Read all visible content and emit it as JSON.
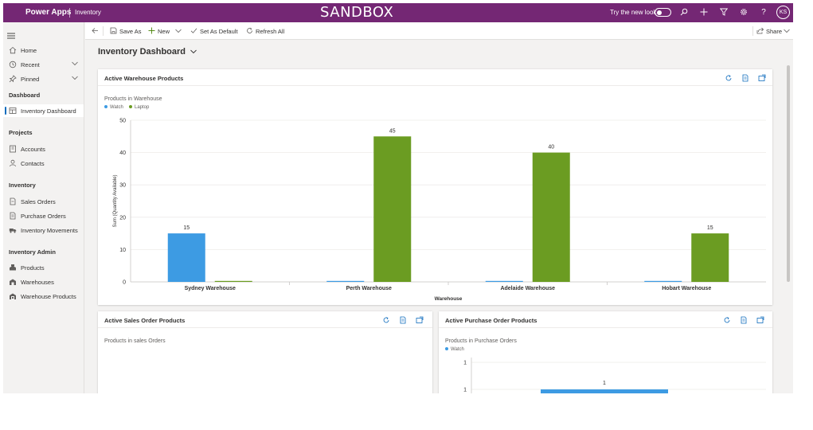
{
  "topbar": {
    "brand": "Power Apps",
    "environment": "Inventory",
    "banner": "SANDBOX",
    "try_new_look": "Try the new look",
    "avatar_initials": "KS"
  },
  "sidebar": {
    "items": [
      {
        "label": "Home"
      },
      {
        "label": "Recent"
      },
      {
        "label": "Pinned"
      }
    ],
    "sections": [
      {
        "title": "Dashboard",
        "items": [
          {
            "label": "Inventory Dashboard"
          }
        ]
      },
      {
        "title": "Projects",
        "items": [
          {
            "label": "Accounts"
          },
          {
            "label": "Contacts"
          }
        ]
      },
      {
        "title": "Inventory",
        "items": [
          {
            "label": "Sales Orders"
          },
          {
            "label": "Purchase Orders"
          },
          {
            "label": "Inventory Movements"
          }
        ]
      },
      {
        "title": "Inventory Admin",
        "items": [
          {
            "label": "Products"
          },
          {
            "label": "Warehouses"
          },
          {
            "label": "Warehouse Products"
          }
        ]
      }
    ]
  },
  "commandbar": {
    "save_as": "Save As",
    "new": "New",
    "set_as_default": "Set As Default",
    "refresh_all": "Refresh All",
    "share": "Share"
  },
  "page": {
    "title": "Inventory Dashboard"
  },
  "cards": {
    "warehouse": {
      "title": "Active Warehouse Products",
      "subtitle": "Products in Warehouse"
    },
    "sales": {
      "title": "Active Sales Order Products",
      "subtitle": "Products in sales Orders"
    },
    "purchase": {
      "title": "Active Purchase Order Products",
      "subtitle": "Products in Purchase Orders"
    }
  },
  "colors": {
    "brand": "#742774",
    "watch": "#3d9be3",
    "laptop": "#6b9c22"
  },
  "chart_data": [
    {
      "type": "bar",
      "title": "Products in Warehouse",
      "xlabel": "Warehouse",
      "ylabel": "Sum (Quantity Available)",
      "categories": [
        "Sydney Warehouse",
        "Perth Warehouse",
        "Adelaide Warehouse",
        "Hobart Warehouse"
      ],
      "series": [
        {
          "name": "Watch",
          "values": [
            15,
            0,
            0,
            0
          ],
          "data_labels": [
            "15",
            "",
            "",
            ""
          ]
        },
        {
          "name": "Laptop",
          "values": [
            0,
            45,
            40,
            15
          ],
          "data_labels": [
            "",
            "45",
            "40",
            "15"
          ]
        }
      ],
      "ylim": [
        0,
        50
      ],
      "yticks": [
        "0",
        "10",
        "20",
        "30",
        "40",
        "50"
      ],
      "grid": true,
      "legend": "top-left"
    },
    {
      "type": "bar",
      "title": "Products in Purchase Orders",
      "series": [
        {
          "name": "Watch",
          "values": [
            1
          ],
          "data_labels": [
            "1"
          ]
        }
      ],
      "yticks": [
        "1",
        "1"
      ],
      "grid": true,
      "legend": "top-left"
    }
  ]
}
